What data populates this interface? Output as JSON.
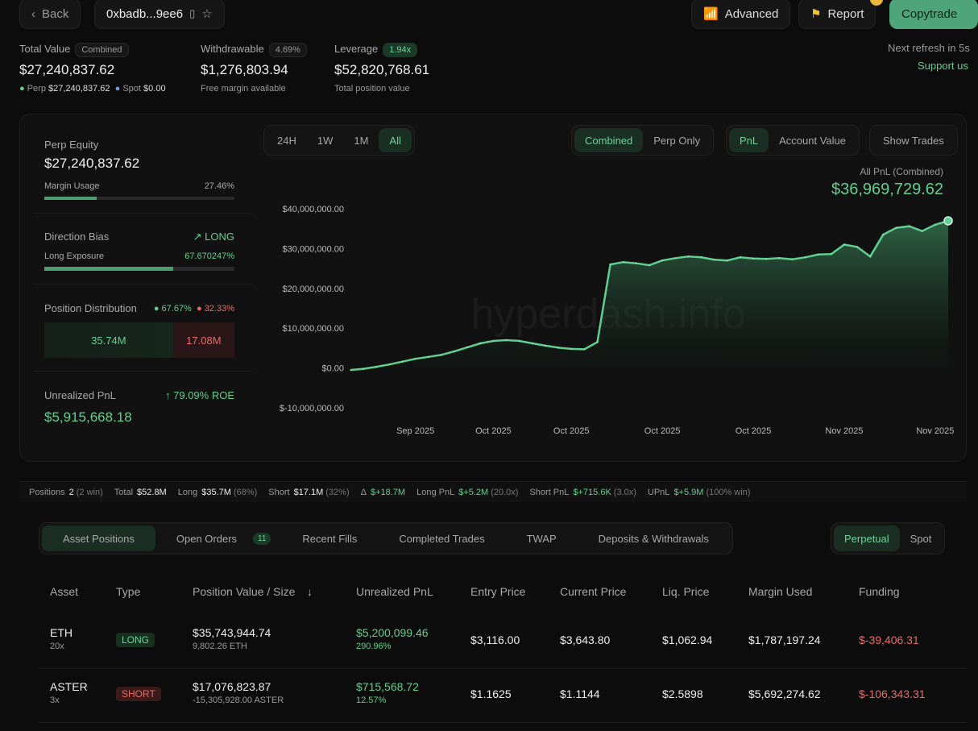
{
  "header": {
    "back": "Back",
    "address": "0xbadb...9ee6",
    "advanced": "Advanced",
    "report": "Report",
    "copytrade": "Copytrade",
    "next_refresh": "Next refresh in 5s",
    "support": "Support us"
  },
  "summary": {
    "total_value": {
      "label": "Total Value",
      "badge": "Combined",
      "value": "$27,240,837.62",
      "perp_label": "Perp",
      "perp_value": "$27,240,837.62",
      "spot_label": "Spot",
      "spot_value": "$0.00"
    },
    "withdrawable": {
      "label": "Withdrawable",
      "badge": "4.69%",
      "value": "$1,276,803.94",
      "sub": "Free margin available"
    },
    "leverage": {
      "label": "Leverage",
      "badge": "1.94x",
      "value": "$52,820,768.61",
      "sub": "Total position value"
    }
  },
  "left": {
    "perp_equity_label": "Perp Equity",
    "perp_equity": "$27,240,837.62",
    "margin_usage_label": "Margin Usage",
    "margin_usage": "27.46%",
    "margin_usage_pct": 27.46,
    "direction_label": "Direction Bias",
    "direction": "LONG",
    "long_exposure_label": "Long Exposure",
    "long_exposure": "67.670247%",
    "long_exposure_pct": 67.670247,
    "distribution_label": "Position Distribution",
    "long_pct": "67.67%",
    "short_pct": "32.33%",
    "long_amount": "35.74M",
    "short_amount": "17.08M",
    "upnl_label": "Unrealized PnL",
    "roe": "79.09% ROE",
    "upnl": "$5,915,668.18"
  },
  "chart_controls": {
    "ranges": [
      "24H",
      "1W",
      "1M",
      "All"
    ],
    "range_selected": "All",
    "modes": [
      "Combined",
      "Perp Only"
    ],
    "mode_selected": "Combined",
    "metrics": [
      "PnL",
      "Account Value"
    ],
    "metric_selected": "PnL",
    "show_trades": "Show Trades"
  },
  "chart_data": {
    "type": "area",
    "title": "All PnL (Combined)",
    "headline_value": "$36,969,729.62",
    "watermark": "hyperdash.info",
    "ylim": [
      -10000000,
      40000000
    ],
    "yticks": [
      40000000,
      30000000,
      20000000,
      10000000,
      0,
      -10000000
    ],
    "ytick_labels": [
      "$40,000,000.00",
      "$30,000,000.00",
      "$20,000,000.00",
      "$10,000,000.00",
      "$0.00",
      "$-10,000,000.00"
    ],
    "xticks": [
      {
        "date": "2025-09-28",
        "label": "Sep 2025"
      },
      {
        "date": "2025-10-04",
        "label": "Oct 2025"
      },
      {
        "date": "2025-10-10",
        "label": "Oct 2025"
      },
      {
        "date": "2025-10-17",
        "label": "Oct 2025"
      },
      {
        "date": "2025-10-24",
        "label": "Oct 2025"
      },
      {
        "date": "2025-10-31",
        "label": "Nov 2025"
      },
      {
        "date": "2025-11-07",
        "label": "Nov 2025"
      }
    ],
    "start_date": "2025-09-23",
    "values": [
      -0.5,
      -0.2,
      0.3,
      0.9,
      1.6,
      2.3,
      2.8,
      3.3,
      4.2,
      5.2,
      6.2,
      6.8,
      7.0,
      6.8,
      6.2,
      5.6,
      5.1,
      4.8,
      4.7,
      6.5,
      26.0,
      26.6,
      26.3,
      25.8,
      27.0,
      27.6,
      28.0,
      27.8,
      27.2,
      27.0,
      27.8,
      27.5,
      27.4,
      27.6,
      27.3,
      27.8,
      28.5,
      28.6,
      31.0,
      30.4,
      28.0,
      33.5,
      35.2,
      35.6,
      34.4,
      36.0,
      36.97
    ],
    "value_unit": "millions USD",
    "color": "#5fcf90",
    "grid": false
  },
  "stats": [
    {
      "label": "Positions",
      "value": "2",
      "extra": "(2 win)",
      "color": "w"
    },
    {
      "label": "Total",
      "value": "$52.8M",
      "extra": "",
      "color": "w"
    },
    {
      "label": "Long",
      "value": "$35.7M",
      "extra": "(68%)",
      "color": "w"
    },
    {
      "label": "Short",
      "value": "$17.1M",
      "extra": "(32%)",
      "color": "w"
    },
    {
      "label": "Δ",
      "value": "$+18.7M",
      "extra": "",
      "color": "g"
    },
    {
      "label": "Long PnL",
      "value": "$+5.2M",
      "extra": "(20.0x)",
      "color": "g"
    },
    {
      "label": "Short PnL",
      "value": "$+715.6K",
      "extra": "(3.0x)",
      "color": "g"
    },
    {
      "label": "UPnL",
      "value": "$+5.9M",
      "extra": "(100% win)",
      "color": "g"
    }
  ],
  "tabs": [
    {
      "label": "Asset Positions",
      "active": true
    },
    {
      "label": "Open Orders",
      "count": "11"
    },
    {
      "label": "Recent Fills"
    },
    {
      "label": "Completed Trades"
    },
    {
      "label": "TWAP"
    },
    {
      "label": "Deposits & Withdrawals"
    }
  ],
  "market_tabs": [
    "Perpetual",
    "Spot"
  ],
  "table": {
    "columns": [
      "Asset",
      "Type",
      "Position Value / Size",
      "Unrealized PnL",
      "Entry Price",
      "Current Price",
      "Liq. Price",
      "Margin Used",
      "Funding"
    ],
    "rows": [
      {
        "asset": "ETH",
        "lev": "20x",
        "type": "LONG",
        "value": "$35,743,944.74",
        "size": "9,802.26 ETH",
        "upnl": "$5,200,099.46",
        "upnl_pct": "290.96%",
        "entry": "$3,116.00",
        "current": "$3,643.80",
        "liq": "$1,062.94",
        "margin": "$1,787,197.24",
        "funding": "$-39,406.31"
      },
      {
        "asset": "ASTER",
        "lev": "3x",
        "type": "SHORT",
        "value": "$17,076,823.87",
        "size": "-15,305,928.00 ASTER",
        "upnl": "$715,568.72",
        "upnl_pct": "12.57%",
        "entry": "$1.1625",
        "current": "$1.1144",
        "liq": "$2.5898",
        "margin": "$5,692,274.62",
        "funding": "$-106,343.31"
      }
    ]
  }
}
